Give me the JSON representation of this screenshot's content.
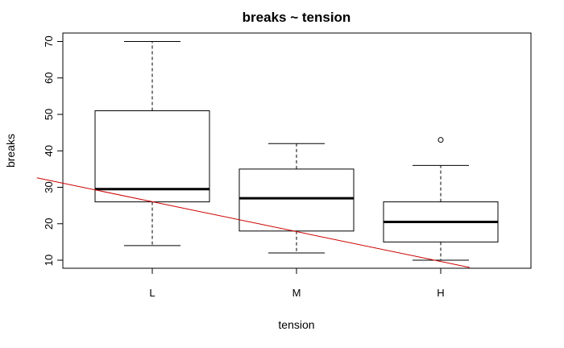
{
  "chart_data": {
    "type": "boxplot",
    "title": "breaks ~ tension",
    "xlabel": "tension",
    "ylabel": "breaks",
    "ylim": [
      8,
      72
    ],
    "yticks": [
      10,
      20,
      30,
      40,
      50,
      60,
      70
    ],
    "grid": false,
    "categories": [
      "L",
      "M",
      "H"
    ],
    "boxes": [
      {
        "category": "L",
        "lower_whisker": 14,
        "q1": 26,
        "median": 29.5,
        "q3": 51,
        "upper_whisker": 70,
        "outliers": []
      },
      {
        "category": "M",
        "lower_whisker": 12,
        "q1": 18,
        "median": 27,
        "q3": 35,
        "upper_whisker": 42,
        "outliers": []
      },
      {
        "category": "H",
        "lower_whisker": 10,
        "q1": 15,
        "median": 20.5,
        "q3": 26,
        "upper_whisker": 36,
        "outliers": [
          43
        ]
      }
    ],
    "overlay_line": {
      "color": "#cc0000",
      "points": [
        [
          0.2,
          32.6
        ],
        [
          3.2,
          8
        ]
      ]
    }
  }
}
